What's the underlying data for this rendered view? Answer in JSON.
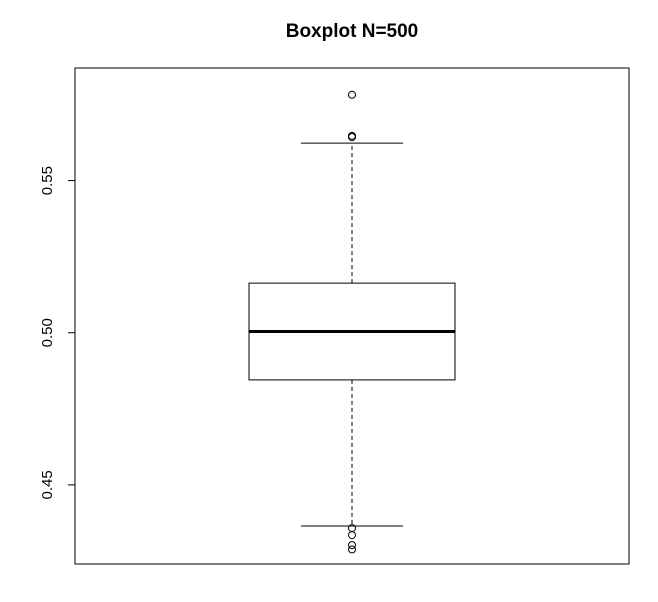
{
  "chart_data": {
    "type": "boxplot",
    "title": "Boxplot N=500",
    "xlabel": "",
    "ylabel": "",
    "ylim": [
      0.424,
      0.587
    ],
    "yticks": [
      0.45,
      0.5,
      0.55
    ],
    "ytick_labels": [
      "0.45",
      "0.50",
      "0.55"
    ],
    "grid": false,
    "box": {
      "q1": 0.4845,
      "median": 0.5004,
      "q3": 0.5163,
      "whisker_low": 0.4365,
      "whisker_high": 0.5623,
      "outliers": [
        0.5782,
        0.5647,
        0.5643,
        0.4358,
        0.4335,
        0.4302,
        0.4288
      ]
    }
  }
}
